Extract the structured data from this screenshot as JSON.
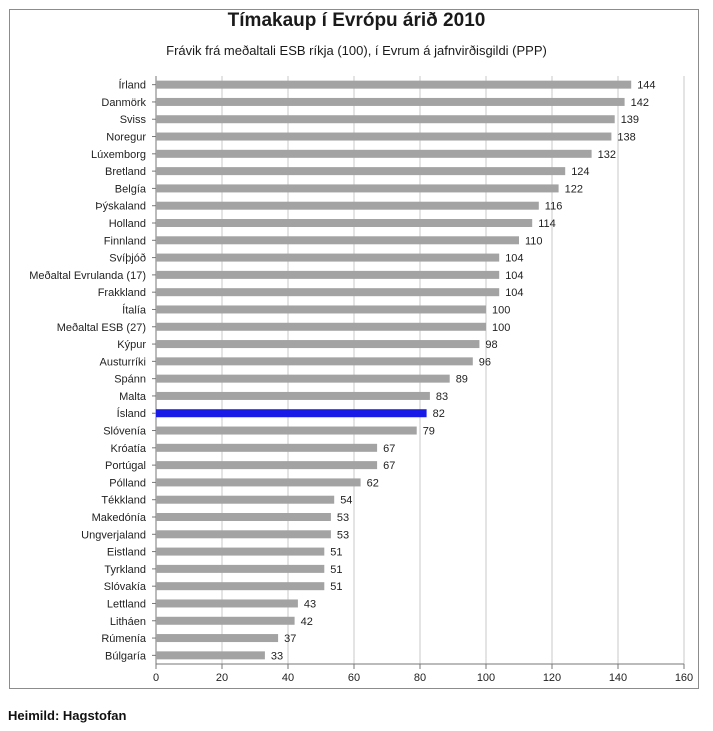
{
  "chart_data": {
    "type": "bar",
    "orientation": "horizontal",
    "title": "Tímakaup í Evrópu árið 2010",
    "subtitle": "Frávik frá meðaltali ESB ríkja (100), í Evrum á jafnvirðisgildi (PPP)",
    "categories": [
      "Írland",
      "Danmörk",
      "Sviss",
      "Noregur",
      "Lúxemborg",
      "Bretland",
      "Belgía",
      "Þýskaland",
      "Holland",
      "Finnland",
      "Svíþjóð",
      "Meðaltal Evrulanda (17)",
      "Frakkland",
      "Ítalía",
      "Meðaltal ESB (27)",
      "Kýpur",
      "Austurríki",
      "Spánn",
      "Malta",
      "Ísland",
      "Slóvenía",
      "Króatía",
      "Portúgal",
      "Pólland",
      "Tékkland",
      "Makedónía",
      "Ungverjaland",
      "Eistland",
      "Tyrkland",
      "Slóvakía",
      "Lettland",
      "Litháen",
      "Rúmenía",
      "Búlgaría"
    ],
    "values": [
      144,
      142,
      139,
      138,
      132,
      124,
      122,
      116,
      114,
      110,
      104,
      104,
      104,
      100,
      100,
      98,
      96,
      89,
      83,
      82,
      79,
      67,
      67,
      62,
      54,
      53,
      53,
      51,
      51,
      51,
      43,
      42,
      37,
      33
    ],
    "highlight": "Ísland",
    "xlim": [
      0,
      160
    ],
    "xticks": [
      0,
      20,
      40,
      60,
      80,
      100,
      120,
      140,
      160
    ],
    "grid": "vertical",
    "colors": {
      "bar": "#a3a3a3",
      "highlight": "#1a1ae6",
      "grid": "#c8c8c8"
    }
  },
  "footer": {
    "source": "Heimild: Hagstofan"
  }
}
